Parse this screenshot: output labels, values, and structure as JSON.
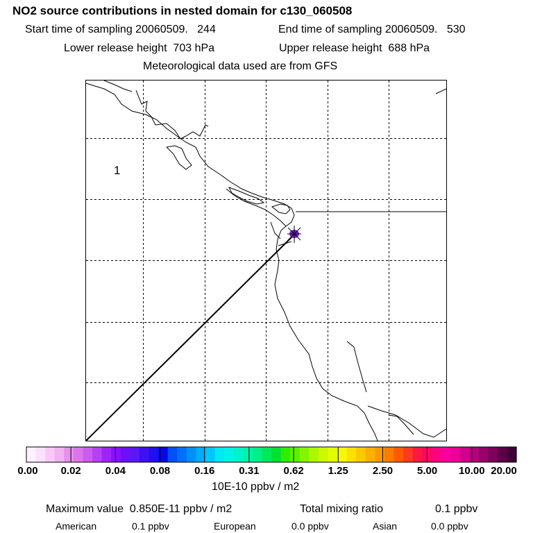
{
  "header": {
    "title": "NO2 source contributions in nested domain for c130_060508",
    "start_time": "Start time of sampling 20060509.   244",
    "end_time": "End time of sampling 20060509.   530",
    "lower_height": "Lower release height  703 hPa",
    "upper_height": "Upper release height  688 hPa",
    "met_data": "Meteorological data used are from GFS"
  },
  "map": {
    "region_label": "1",
    "plume_color": "#7b1fd8"
  },
  "colorbar": {
    "colors": [
      "#fff0ff",
      "#fde0fd",
      "#f8c9f8",
      "#f0b2f0",
      "#e890ec",
      "#dc74ec",
      "#cc5cf0",
      "#b640f4",
      "#9e24f8",
      "#8612fc",
      "#6c10fc",
      "#5a18f4",
      "#3c10f0",
      "#2010ec",
      "#0808e4",
      "#0050f8",
      "#0070fc",
      "#0090fc",
      "#00acfc",
      "#00c8fc",
      "#00e8f4",
      "#00f4e4",
      "#00f4c8",
      "#00f4a8",
      "#00f088",
      "#00e858",
      "#00e030",
      "#30ec00",
      "#5cf000",
      "#84f400",
      "#acf800",
      "#ccf800",
      "#e4fc00",
      "#f8f800",
      "#fce000",
      "#fcc800",
      "#fcb000",
      "#fc9800",
      "#fc7c00",
      "#fc5a00",
      "#fc3a20",
      "#fc1840",
      "#fc0860",
      "#fc0480",
      "#f800a0",
      "#ec0098",
      "#d0008c",
      "#b4007c",
      "#98006c",
      "#7c005c",
      "#5e0048",
      "#400034"
    ],
    "ticks": [
      "0.00",
      "0.02",
      "0.04",
      "0.08",
      "0.16",
      "0.31",
      "0.62",
      "1.25",
      "2.50",
      "5.00",
      "10.00",
      "20.00"
    ],
    "units": "10E-10 ppbv / m2"
  },
  "footer": {
    "max_value": "Maximum value  0.850E-11 ppbv / m2",
    "total_mixing_label": "Total mixing ratio",
    "total_mixing_value": "0.1 ppbv",
    "regions": [
      {
        "name": "American",
        "value": "0.1 ppbv"
      },
      {
        "name": "European",
        "value": "0.0 ppbv"
      },
      {
        "name": "Asian",
        "value": "0.0 ppbv"
      }
    ]
  }
}
